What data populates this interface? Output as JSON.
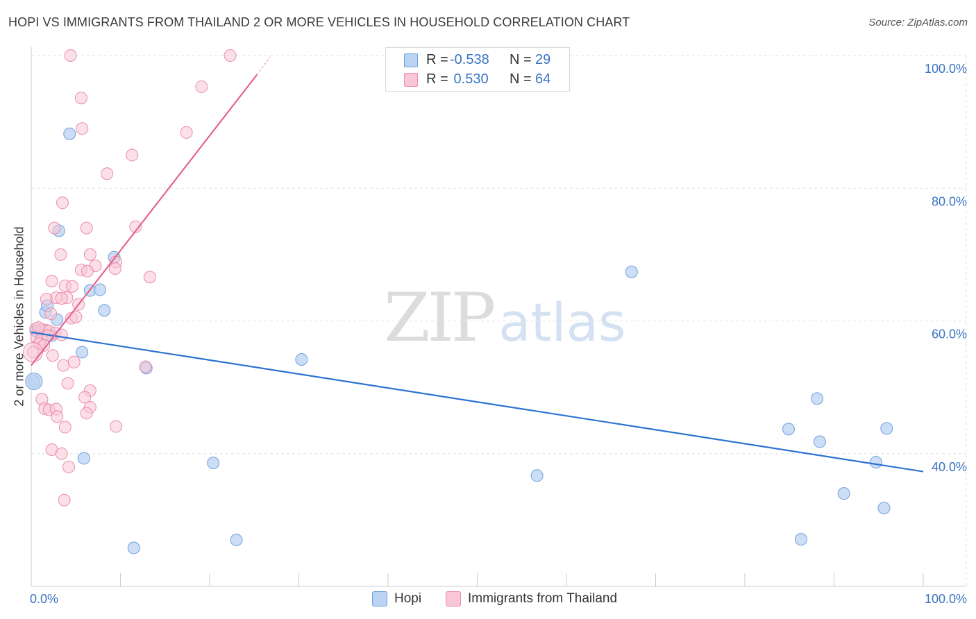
{
  "title": "HOPI VS IMMIGRANTS FROM THAILAND 2 OR MORE VEHICLES IN HOUSEHOLD CORRELATION CHART",
  "source": "Source: ZipAtlas.com",
  "watermark": {
    "zip": "ZIP",
    "atlas": "atlas"
  },
  "legend": {
    "rows": [
      {
        "r_label": "R =",
        "r_value": "-0.538",
        "n_label": "N =",
        "n_value": "29"
      },
      {
        "r_label": "R =",
        "r_value": " 0.530",
        "n_label": "N =",
        "n_value": "64"
      }
    ]
  },
  "bottom_legend": {
    "hopi": "Hopi",
    "thailand": "Immigrants from Thailand"
  },
  "colors": {
    "hopi_fill": "#b9d3f2",
    "hopi_stroke": "#6f9fdc",
    "hopi_line": "#2c72d2",
    "thai_fill": "#f8c6d5",
    "thai_stroke": "#eb8bab",
    "thai_line": "#e4648f",
    "axis_text": "#3a74c4",
    "grid": "#e2e2e2"
  },
  "chart_data": {
    "type": "scatter",
    "title": "HOPI VS IMMIGRANTS FROM THAILAND 2 OR MORE VEHICLES IN HOUSEHOLD CORRELATION CHART",
    "xlabel": "",
    "ylabel": "2 or more Vehicles in Household",
    "xlim": [
      0,
      100
    ],
    "ylim": [
      20,
      100
    ],
    "x_tick_labels": [
      "0.0%",
      "100.0%"
    ],
    "y_ticks": [
      {
        "value": 100,
        "label": "100.0%"
      },
      {
        "value": 80,
        "label": "80.0%"
      },
      {
        "value": 60,
        "label": "60.0%"
      },
      {
        "value": 40,
        "label": "40.0%"
      }
    ],
    "grid": true,
    "legend_position": "top-center",
    "series": [
      {
        "name": "Hopi",
        "r": -0.538,
        "n": 29,
        "trend": [
          [
            0,
            58.3
          ],
          [
            100,
            37.3
          ]
        ],
        "points": [
          [
            4.3,
            88.2
          ],
          [
            3.1,
            73.6
          ],
          [
            6.6,
            64.6
          ],
          [
            9.3,
            69.6
          ],
          [
            7.7,
            64.7
          ],
          [
            1.6,
            61.3
          ],
          [
            1.8,
            62.3
          ],
          [
            2.9,
            60.2
          ],
          [
            8.2,
            61.6
          ],
          [
            2.3,
            57.8
          ],
          [
            5.7,
            55.3
          ],
          [
            0.3,
            50.9
          ],
          [
            12.9,
            52.9
          ],
          [
            30.3,
            54.2
          ],
          [
            5.9,
            39.3
          ],
          [
            20.4,
            38.6
          ],
          [
            67.3,
            67.4
          ],
          [
            88.1,
            48.3
          ],
          [
            84.9,
            43.7
          ],
          [
            88.4,
            41.8
          ],
          [
            95.9,
            43.8
          ],
          [
            94.7,
            38.7
          ],
          [
            56.7,
            36.7
          ],
          [
            91.1,
            34.0
          ],
          [
            95.6,
            31.8
          ],
          [
            23.0,
            27.0
          ],
          [
            11.5,
            25.8
          ],
          [
            86.3,
            27.1
          ],
          [
            0.5,
            58.5
          ]
        ]
      },
      {
        "name": "Immigrants from Thailand",
        "r": 0.53,
        "n": 64,
        "trend": [
          [
            0,
            53.3
          ],
          [
            25.3,
            97.1
          ]
        ],
        "trend_dashed_to": [
          26.8,
          99.8
        ],
        "points": [
          [
            4.4,
            100.0
          ],
          [
            22.3,
            100.0
          ],
          [
            5.6,
            93.6
          ],
          [
            19.1,
            95.3
          ],
          [
            5.7,
            89.0
          ],
          [
            17.4,
            88.4
          ],
          [
            11.3,
            85.0
          ],
          [
            8.5,
            82.2
          ],
          [
            3.5,
            77.8
          ],
          [
            2.6,
            74.0
          ],
          [
            6.2,
            74.0
          ],
          [
            11.7,
            74.2
          ],
          [
            3.3,
            70.0
          ],
          [
            6.6,
            70.0
          ],
          [
            7.2,
            68.3
          ],
          [
            9.5,
            68.9
          ],
          [
            5.6,
            67.7
          ],
          [
            6.3,
            67.5
          ],
          [
            9.4,
            67.9
          ],
          [
            13.3,
            66.6
          ],
          [
            2.3,
            66.0
          ],
          [
            3.8,
            65.3
          ],
          [
            4.6,
            65.2
          ],
          [
            4.0,
            63.5
          ],
          [
            2.8,
            63.5
          ],
          [
            3.4,
            63.4
          ],
          [
            5.3,
            62.5
          ],
          [
            1.7,
            63.3
          ],
          [
            2.2,
            61.1
          ],
          [
            4.5,
            60.4
          ],
          [
            0.5,
            58.8
          ],
          [
            1.2,
            58.7
          ],
          [
            1.6,
            58.6
          ],
          [
            2.0,
            58.5
          ],
          [
            2.7,
            58.2
          ],
          [
            0.6,
            57.5
          ],
          [
            1.1,
            57.2
          ],
          [
            1.9,
            57.8
          ],
          [
            3.4,
            57.9
          ],
          [
            0.9,
            56.6
          ],
          [
            1.4,
            56.3
          ],
          [
            0.2,
            55.3
          ],
          [
            3.6,
            53.3
          ],
          [
            4.8,
            53.8
          ],
          [
            12.8,
            53.1
          ],
          [
            6.6,
            49.5
          ],
          [
            6.0,
            48.5
          ],
          [
            1.2,
            48.2
          ],
          [
            1.5,
            46.8
          ],
          [
            2.0,
            46.6
          ],
          [
            2.8,
            46.7
          ],
          [
            6.6,
            47.0
          ],
          [
            6.2,
            46.1
          ],
          [
            2.9,
            45.6
          ],
          [
            3.8,
            44.0
          ],
          [
            9.5,
            44.1
          ],
          [
            2.3,
            40.6
          ],
          [
            3.4,
            40.0
          ],
          [
            4.2,
            38.0
          ],
          [
            3.7,
            33.0
          ],
          [
            4.1,
            50.6
          ],
          [
            0.8,
            59.0
          ],
          [
            2.4,
            54.8
          ],
          [
            5.0,
            60.6
          ]
        ]
      }
    ]
  }
}
